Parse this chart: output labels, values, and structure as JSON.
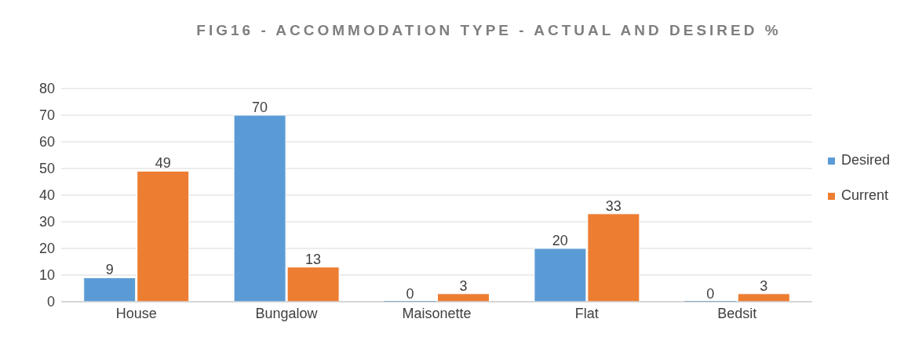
{
  "chart_data": {
    "type": "bar",
    "title": "FIG16 - ACCOMMODATION TYPE - ACTUAL AND DESIRED %",
    "categories": [
      "House",
      "Bungalow",
      "Maisonette",
      "Flat",
      "Bedsit"
    ],
    "series": [
      {
        "name": "Desired",
        "color": "#5b9bd5",
        "values": [
          9,
          70,
          0,
          20,
          0
        ]
      },
      {
        "name": "Current",
        "color": "#ed7d31",
        "values": [
          49,
          13,
          3,
          33,
          3
        ]
      }
    ],
    "ylim": [
      0,
      80
    ],
    "yticks": [
      0,
      10,
      20,
      30,
      40,
      50,
      60,
      70,
      80
    ],
    "grid": "y",
    "legend": "right",
    "data_labels": true
  }
}
